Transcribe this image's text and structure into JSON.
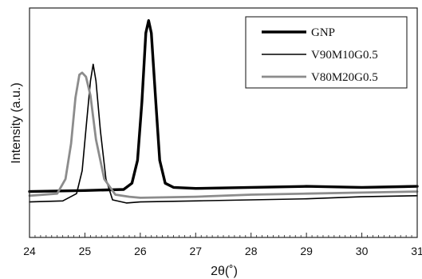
{
  "chart_data": {
    "type": "line",
    "title": "",
    "xlabel": "2θ(˚)",
    "ylabel": "Intensity (a.u.)",
    "xlim": [
      24,
      31
    ],
    "ylim": [
      -0.5,
      10.5
    ],
    "xticks": [
      24,
      25,
      26,
      27,
      28,
      29,
      30,
      31
    ],
    "xtick_labels": [
      "24",
      "25",
      "26",
      "27",
      "28",
      "29",
      "30",
      "31"
    ],
    "yticks_shown": false,
    "grid": false,
    "legend_position": "top-right",
    "series": [
      {
        "name": "GNP",
        "color": "#000000",
        "style": "thick",
        "x": [
          24.0,
          25.0,
          25.7,
          25.85,
          25.95,
          26.03,
          26.1,
          26.15,
          26.2,
          26.28,
          26.35,
          26.45,
          26.6,
          27.0,
          28.0,
          29.0,
          30.0,
          31.0
        ],
        "y": [
          1.7,
          1.75,
          1.8,
          2.1,
          3.2,
          6.0,
          9.3,
          9.9,
          9.3,
          6.0,
          3.2,
          2.1,
          1.9,
          1.85,
          1.9,
          1.95,
          1.9,
          1.95
        ]
      },
      {
        "name": "V90M10G0.5",
        "color": "#000000",
        "style": "thin",
        "x": [
          24.0,
          24.6,
          24.85,
          24.95,
          25.03,
          25.1,
          25.15,
          25.2,
          25.28,
          25.38,
          25.5,
          25.75,
          26.0,
          27.0,
          28.0,
          29.0,
          30.0,
          31.0
        ],
        "y": [
          1.2,
          1.25,
          1.6,
          2.7,
          5.0,
          7.0,
          7.8,
          7.0,
          4.6,
          2.3,
          1.3,
          1.15,
          1.2,
          1.25,
          1.3,
          1.35,
          1.45,
          1.5
        ]
      },
      {
        "name": "V80M20G0.5",
        "color": "#8c8c8c",
        "style": "medium",
        "x": [
          24.0,
          24.5,
          24.65,
          24.75,
          24.83,
          24.9,
          24.95,
          25.02,
          25.1,
          25.2,
          25.35,
          25.55,
          25.8,
          26.0,
          27.0,
          28.0,
          29.0,
          30.0,
          31.0
        ],
        "y": [
          1.5,
          1.6,
          2.3,
          4.0,
          6.2,
          7.3,
          7.4,
          7.2,
          6.3,
          4.2,
          2.3,
          1.55,
          1.45,
          1.4,
          1.45,
          1.55,
          1.6,
          1.65,
          1.7
        ]
      }
    ]
  }
}
